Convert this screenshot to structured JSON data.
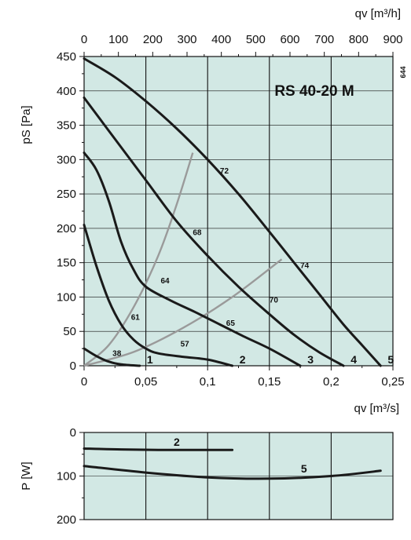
{
  "chart_data": [
    {
      "type": "line",
      "title": "RS 40-20 M",
      "code": "644",
      "xlabel": "qv [m³/s]",
      "x2label": "qv [m³/h]",
      "ylabel": "pS [Pa]",
      "xlim": [
        0,
        0.25
      ],
      "ylim": [
        0,
        450
      ],
      "x2lim": [
        0,
        900
      ],
      "xticks": [
        "0",
        "0,05",
        "0,1",
        "0,15",
        "0,2",
        "0,25"
      ],
      "x2ticks": [
        "0",
        "100",
        "200",
        "300",
        "400",
        "500",
        "600",
        "700",
        "800",
        "900"
      ],
      "yticks": [
        "0",
        "50",
        "100",
        "150",
        "200",
        "250",
        "300",
        "350",
        "400",
        "450"
      ],
      "grid": true,
      "series": [
        {
          "name": "1",
          "x": [
            0,
            0.01,
            0.02,
            0.03,
            0.045
          ],
          "y": [
            25,
            14,
            6,
            2,
            0
          ]
        },
        {
          "name": "2",
          "x": [
            0,
            0.01,
            0.02,
            0.03,
            0.04,
            0.05,
            0.06,
            0.08,
            0.1,
            0.12
          ],
          "y": [
            205,
            145,
            95,
            60,
            38,
            25,
            18,
            13,
            9,
            0
          ]
        },
        {
          "name": "3",
          "x": [
            0,
            0.01,
            0.02,
            0.03,
            0.04,
            0.05,
            0.07,
            0.09,
            0.11,
            0.13,
            0.15,
            0.175
          ],
          "y": [
            310,
            285,
            240,
            180,
            140,
            115,
            95,
            78,
            60,
            42,
            25,
            0
          ]
        },
        {
          "name": "4",
          "x": [
            0,
            0.025,
            0.05,
            0.075,
            0.1,
            0.125,
            0.15,
            0.17,
            0.19,
            0.21
          ],
          "y": [
            390,
            330,
            270,
            210,
            160,
            115,
            75,
            45,
            20,
            0
          ]
        },
        {
          "name": "5",
          "x": [
            0,
            0.025,
            0.05,
            0.075,
            0.1,
            0.125,
            0.15,
            0.17,
            0.19,
            0.21,
            0.225,
            0.24
          ],
          "y": [
            447,
            420,
            385,
            345,
            300,
            250,
            195,
            150,
            105,
            60,
            30,
            0
          ]
        }
      ],
      "system_curves": [
        {
          "x": [
            0,
            0.02,
            0.04,
            0.06,
            0.075,
            0.088
          ],
          "y": [
            0,
            30,
            85,
            160,
            235,
            310
          ]
        },
        {
          "x": [
            0,
            0.04,
            0.08,
            0.12,
            0.16
          ],
          "y": [
            0,
            20,
            55,
            100,
            155
          ]
        }
      ],
      "annotations": [
        {
          "text": "38",
          "x": 0.023,
          "y": 14
        },
        {
          "text": "61",
          "x": 0.038,
          "y": 67
        },
        {
          "text": "64",
          "x": 0.062,
          "y": 120
        },
        {
          "text": "57",
          "x": 0.078,
          "y": 28
        },
        {
          "text": "68",
          "x": 0.088,
          "y": 190
        },
        {
          "text": "65",
          "x": 0.115,
          "y": 58
        },
        {
          "text": "72",
          "x": 0.11,
          "y": 280
        },
        {
          "text": "70",
          "x": 0.15,
          "y": 92
        },
        {
          "text": "74",
          "x": 0.175,
          "y": 142
        }
      ]
    },
    {
      "type": "line",
      "ylabel": "P [W]",
      "xlim": [
        0,
        0.25
      ],
      "ylim": [
        0,
        200
      ],
      "y_inverted": true,
      "yticks": [
        "0",
        "100",
        "200"
      ],
      "grid": true,
      "series": [
        {
          "name": "2",
          "x": [
            0,
            0.03,
            0.06,
            0.09,
            0.12
          ],
          "y": [
            37,
            39,
            40,
            40,
            40
          ]
        },
        {
          "name": "5",
          "x": [
            0,
            0.05,
            0.1,
            0.15,
            0.2,
            0.24
          ],
          "y": [
            77,
            92,
            103,
            106,
            100,
            88
          ]
        }
      ]
    }
  ]
}
